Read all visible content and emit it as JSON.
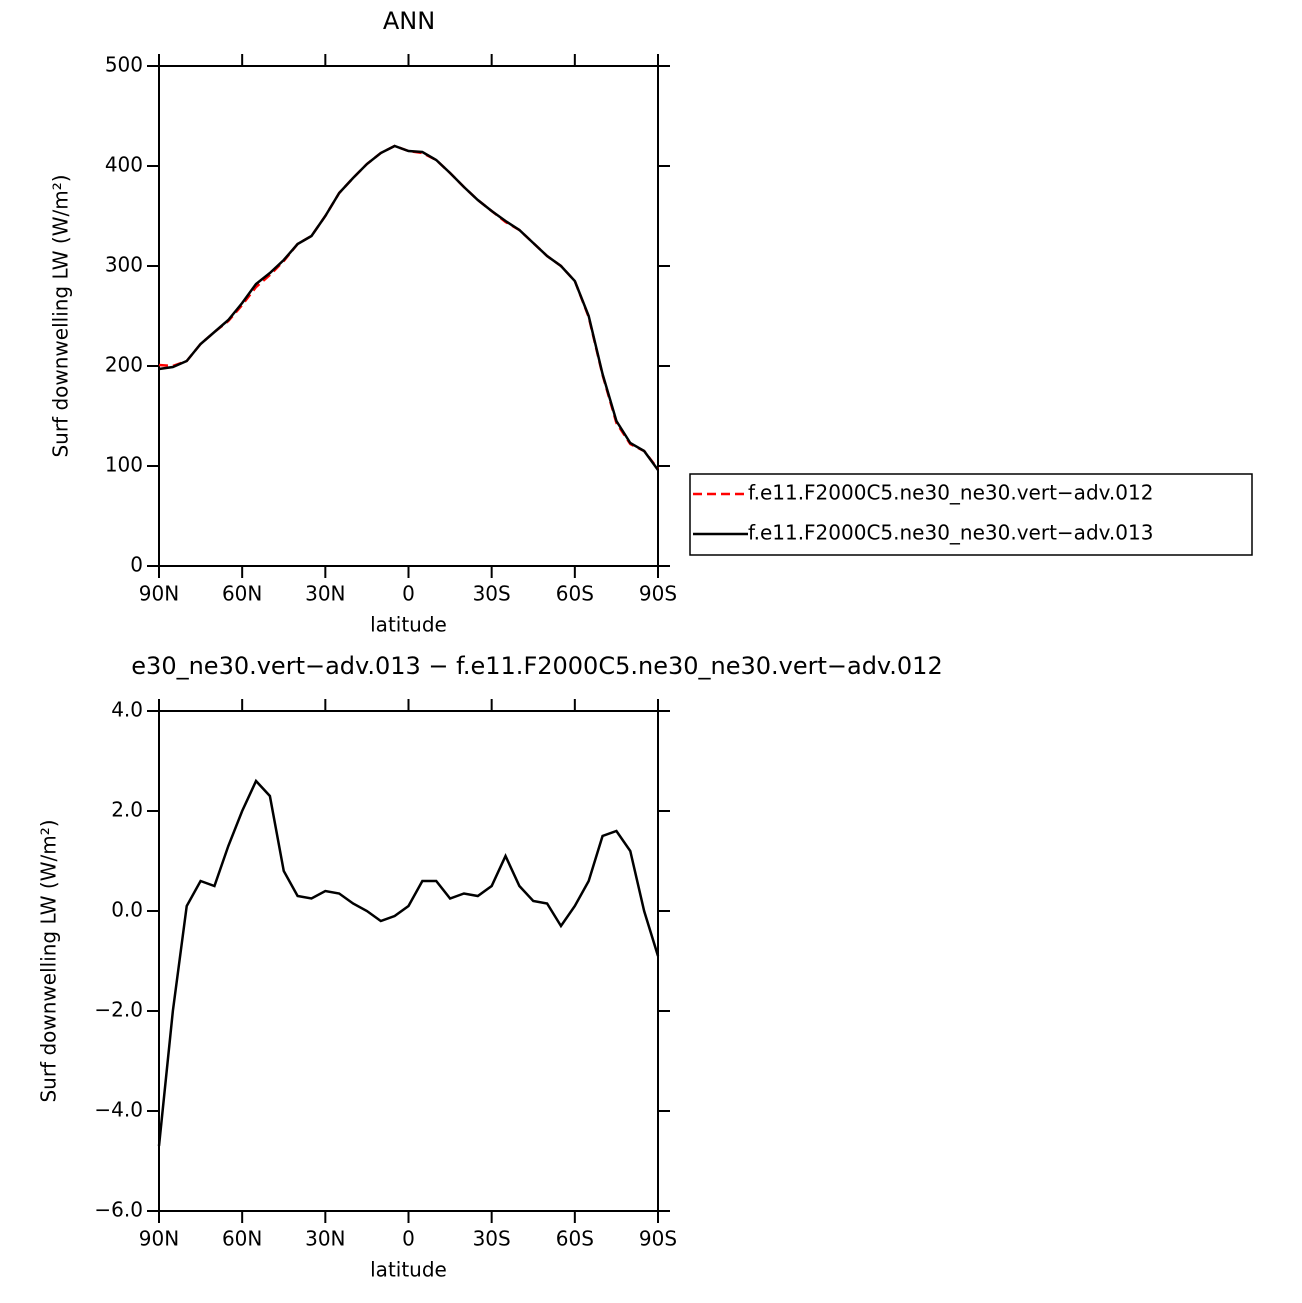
{
  "chart_data": [
    {
      "type": "line",
      "title": "ANN",
      "xlabel": "latitude",
      "ylabel": "Surf downwelling LW (W/m²)",
      "x": [
        90,
        85,
        80,
        75,
        70,
        65,
        60,
        55,
        50,
        45,
        40,
        35,
        30,
        25,
        20,
        15,
        10,
        5,
        0,
        -5,
        -10,
        -15,
        -20,
        -25,
        -30,
        -35,
        -40,
        -45,
        -50,
        -55,
        -60,
        -65,
        -70,
        -75,
        -80,
        -85,
        -90
      ],
      "series": [
        {
          "name": "f.e11.F2000C5.ne30_ne30.vert−adv.012",
          "color": "#ff0000",
          "style": "dashed",
          "values": [
            201,
            200,
            205,
            222,
            234,
            245,
            261,
            279,
            291,
            305,
            322,
            330,
            350,
            373,
            388,
            402,
            413,
            420,
            415,
            413,
            406,
            393,
            379,
            366,
            355,
            344,
            336,
            323,
            310,
            300,
            285,
            249,
            191,
            143,
            122,
            115,
            97
          ]
        },
        {
          "name": "f.e11.F2000C5.ne30_ne30.vert−adv.013",
          "color": "#000000",
          "style": "solid",
          "values": [
            197,
            199,
            205,
            222,
            234,
            246,
            263,
            282,
            293,
            306,
            322,
            330,
            350,
            373,
            388,
            402,
            413,
            420,
            415,
            414,
            406,
            393,
            379,
            366,
            355,
            345,
            336,
            323,
            310,
            300,
            285,
            250,
            192,
            145,
            123,
            115,
            96
          ]
        }
      ],
      "xlim": [
        90,
        -90
      ],
      "xticks": [
        {
          "value": 90,
          "label": "90N"
        },
        {
          "value": 60,
          "label": "60N"
        },
        {
          "value": 30,
          "label": "30N"
        },
        0,
        {
          "value": -30,
          "label": "30S"
        },
        {
          "value": -60,
          "label": "60S"
        },
        {
          "value": -90,
          "label": "90S"
        }
      ],
      "ylim": [
        0,
        500
      ],
      "yticks": [
        0,
        100,
        200,
        300,
        400,
        500
      ],
      "legend": "right"
    },
    {
      "type": "line",
      "title": "e30_ne30.vert−adv.013 − f.e11.F2000C5.ne30_ne30.vert−adv.012",
      "xlabel": "latitude",
      "ylabel": "Surf downwelling LW (W/m²)",
      "x": [
        90,
        85,
        80,
        75,
        70,
        65,
        60,
        55,
        50,
        45,
        40,
        35,
        30,
        25,
        20,
        15,
        10,
        5,
        0,
        -5,
        -10,
        -15,
        -20,
        -25,
        -30,
        -35,
        -40,
        -45,
        -50,
        -55,
        -60,
        -65,
        -70,
        -75,
        -80,
        -85,
        -90
      ],
      "series": [
        {
          "color": "#000000",
          "style": "solid",
          "values": [
            -4.7,
            -2.0,
            0.1,
            0.6,
            0.5,
            1.3,
            2.0,
            2.6,
            2.3,
            0.8,
            0.3,
            0.25,
            0.4,
            0.35,
            0.15,
            0.0,
            -0.2,
            -0.1,
            0.1,
            0.6,
            0.6,
            0.25,
            0.35,
            0.3,
            0.5,
            1.1,
            0.5,
            0.2,
            0.15,
            -0.3,
            0.1,
            0.6,
            1.5,
            1.6,
            1.2,
            0.0,
            -0.9
          ]
        }
      ],
      "xlim": [
        90,
        -90
      ],
      "xticks": [
        {
          "value": 90,
          "label": "90N"
        },
        {
          "value": 60,
          "label": "60N"
        },
        {
          "value": 30,
          "label": "30N"
        },
        0,
        {
          "value": -30,
          "label": "30S"
        },
        {
          "value": -60,
          "label": "60S"
        },
        {
          "value": -90,
          "label": "90S"
        }
      ],
      "ylim": [
        -6,
        4
      ],
      "yticks": [
        {
          "value": -6,
          "label": "−6.0"
        },
        {
          "value": -4,
          "label": "−4.0"
        },
        {
          "value": -2,
          "label": "−2.0"
        },
        {
          "value": 0,
          "label": "0.0"
        },
        {
          "value": 2,
          "label": "2.0"
        },
        {
          "value": 4,
          "label": "4.0"
        }
      ]
    }
  ]
}
